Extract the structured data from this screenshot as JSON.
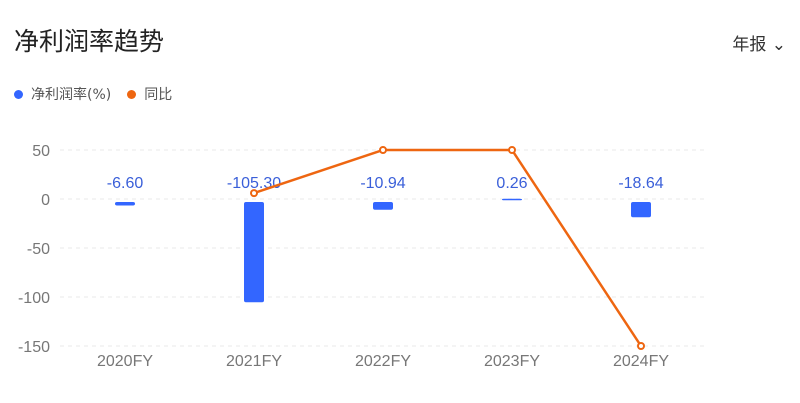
{
  "header": {
    "title": "净利润率趋势",
    "period_label": "年报"
  },
  "colors": {
    "bar": "#3366ff",
    "line": "#ee6611",
    "label": "#3a5fd9"
  },
  "chart_data": {
    "type": "bar+line",
    "categories": [
      "2020FY",
      "2021FY",
      "2022FY",
      "2023FY",
      "2024FY"
    ],
    "series": [
      {
        "name": "净利润率(%)",
        "type": "bar",
        "values": [
          -6.6,
          -105.3,
          -10.94,
          0.26,
          -18.64
        ],
        "labels": [
          "-6.60",
          "-105.30",
          "-10.94",
          "0.26",
          "-18.64"
        ]
      },
      {
        "name": "同比",
        "type": "line",
        "values": [
          null,
          6,
          50,
          50,
          -150
        ]
      }
    ],
    "yticks": [
      50,
      0,
      -50,
      -100,
      -150
    ],
    "ylim": [
      -150,
      50
    ],
    "grid": true,
    "legend": "top-left"
  }
}
